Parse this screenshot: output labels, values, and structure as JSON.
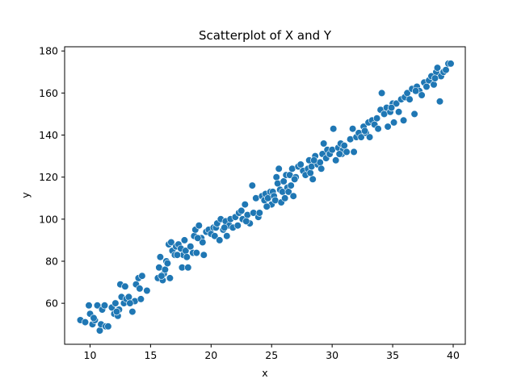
{
  "chart_data": {
    "type": "scatter",
    "title": "Scatterplot of X and Y",
    "xlabel": "x",
    "ylabel": "y",
    "xlim": [
      7.9,
      41.0
    ],
    "ylim": [
      40.5,
      182.0
    ],
    "x_ticks": [
      10,
      15,
      20,
      25,
      30,
      35,
      40
    ],
    "y_ticks": [
      60,
      80,
      100,
      120,
      140,
      160,
      180
    ],
    "grid": false,
    "legend": "none",
    "marker_color": "#1f77b4",
    "marker_edge": "#ffffff",
    "points": [
      [
        9.2,
        52
      ],
      [
        9.6,
        51
      ],
      [
        9.9,
        59
      ],
      [
        10.0,
        55
      ],
      [
        10.2,
        50
      ],
      [
        10.4,
        52
      ],
      [
        10.6,
        59
      ],
      [
        10.8,
        47
      ],
      [
        10.9,
        50
      ],
      [
        11.0,
        57
      ],
      [
        11.2,
        59
      ],
      [
        11.3,
        49
      ],
      [
        11.5,
        49
      ],
      [
        11.8,
        58
      ],
      [
        12.0,
        55
      ],
      [
        12.1,
        60
      ],
      [
        12.3,
        54
      ],
      [
        12.4,
        57
      ],
      [
        12.5,
        69
      ],
      [
        12.6,
        63
      ],
      [
        12.8,
        60
      ],
      [
        12.9,
        68
      ],
      [
        13.0,
        62
      ],
      [
        13.2,
        63
      ],
      [
        13.5,
        56
      ],
      [
        13.7,
        61
      ],
      [
        13.8,
        69
      ],
      [
        14.0,
        72
      ],
      [
        14.1,
        67
      ],
      [
        14.2,
        62
      ],
      [
        14.3,
        73
      ],
      [
        14.7,
        66
      ],
      [
        15.6,
        72
      ],
      [
        15.7,
        77
      ],
      [
        15.8,
        82
      ],
      [
        16.0,
        71
      ],
      [
        16.1,
        74
      ],
      [
        16.2,
        76
      ],
      [
        16.3,
        80
      ],
      [
        16.4,
        79
      ],
      [
        16.5,
        88
      ],
      [
        16.6,
        72
      ],
      [
        16.7,
        89
      ],
      [
        16.8,
        85
      ],
      [
        17.0,
        83
      ],
      [
        17.1,
        87
      ],
      [
        17.3,
        88
      ],
      [
        17.5,
        86
      ],
      [
        17.6,
        77
      ],
      [
        17.7,
        83
      ],
      [
        17.8,
        90
      ],
      [
        17.9,
        85
      ],
      [
        18.0,
        82
      ],
      [
        18.1,
        77
      ],
      [
        18.3,
        87
      ],
      [
        18.5,
        84
      ],
      [
        18.6,
        92
      ],
      [
        18.7,
        95
      ],
      [
        18.8,
        84
      ],
      [
        19.0,
        97
      ],
      [
        19.2,
        91
      ],
      [
        19.3,
        89
      ],
      [
        19.4,
        83
      ],
      [
        19.6,
        94
      ],
      [
        19.8,
        95
      ],
      [
        20.0,
        93
      ],
      [
        20.2,
        96
      ],
      [
        20.3,
        92
      ],
      [
        20.4,
        96
      ],
      [
        20.5,
        98
      ],
      [
        20.7,
        90
      ],
      [
        20.8,
        100
      ],
      [
        21.0,
        95
      ],
      [
        21.2,
        99
      ],
      [
        21.3,
        92
      ],
      [
        21.5,
        97
      ],
      [
        21.6,
        100
      ],
      [
        21.8,
        96
      ],
      [
        22.0,
        101
      ],
      [
        22.2,
        97
      ],
      [
        22.3,
        103
      ],
      [
        22.5,
        104
      ],
      [
        22.6,
        100
      ],
      [
        22.8,
        107
      ],
      [
        23.0,
        102
      ],
      [
        23.2,
        98
      ],
      [
        23.4,
        116
      ],
      [
        23.5,
        103
      ],
      [
        23.7,
        110
      ],
      [
        23.9,
        101
      ],
      [
        24.0,
        103
      ],
      [
        24.2,
        111
      ],
      [
        24.4,
        109
      ],
      [
        24.5,
        112
      ],
      [
        24.7,
        110
      ],
      [
        24.9,
        113
      ],
      [
        25.0,
        107
      ],
      [
        25.1,
        113
      ],
      [
        25.2,
        111
      ],
      [
        25.3,
        109
      ],
      [
        25.4,
        120
      ],
      [
        25.5,
        117
      ],
      [
        25.6,
        124
      ],
      [
        25.7,
        114
      ],
      [
        25.8,
        108
      ],
      [
        25.9,
        113
      ],
      [
        26.0,
        118
      ],
      [
        26.1,
        110
      ],
      [
        26.2,
        121
      ],
      [
        26.3,
        115
      ],
      [
        26.4,
        113
      ],
      [
        26.5,
        121
      ],
      [
        26.6,
        116
      ],
      [
        26.7,
        124
      ],
      [
        26.8,
        111
      ],
      [
        27.0,
        120
      ],
      [
        27.2,
        125
      ],
      [
        27.4,
        126
      ],
      [
        27.6,
        123
      ],
      [
        27.8,
        121
      ],
      [
        28.0,
        124
      ],
      [
        28.1,
        128
      ],
      [
        28.2,
        122
      ],
      [
        28.3,
        125
      ],
      [
        28.4,
        119
      ],
      [
        28.6,
        130
      ],
      [
        28.8,
        126
      ],
      [
        29.0,
        127
      ],
      [
        29.1,
        124
      ],
      [
        29.2,
        131
      ],
      [
        29.3,
        136
      ],
      [
        29.5,
        129
      ],
      [
        29.6,
        133
      ],
      [
        29.8,
        131
      ],
      [
        30.0,
        133
      ],
      [
        30.1,
        143
      ],
      [
        30.3,
        128
      ],
      [
        30.5,
        134
      ],
      [
        30.7,
        136
      ],
      [
        30.8,
        131
      ],
      [
        30.9,
        133
      ],
      [
        31.0,
        135
      ],
      [
        31.2,
        132
      ],
      [
        31.5,
        138
      ],
      [
        31.7,
        143
      ],
      [
        31.8,
        132
      ],
      [
        32.0,
        139
      ],
      [
        32.2,
        141
      ],
      [
        32.4,
        139
      ],
      [
        32.6,
        144
      ],
      [
        32.8,
        141
      ],
      [
        33.0,
        146
      ],
      [
        33.1,
        139
      ],
      [
        33.3,
        147
      ],
      [
        33.5,
        145
      ],
      [
        33.7,
        148
      ],
      [
        33.8,
        143
      ],
      [
        34.0,
        152
      ],
      [
        34.1,
        160
      ],
      [
        34.3,
        150
      ],
      [
        34.5,
        153
      ],
      [
        34.6,
        144
      ],
      [
        34.8,
        151
      ],
      [
        35.0,
        155
      ],
      [
        35.1,
        146
      ],
      [
        35.3,
        155
      ],
      [
        35.5,
        151
      ],
      [
        35.7,
        157
      ],
      [
        35.9,
        147
      ],
      [
        36.0,
        158
      ],
      [
        36.2,
        160
      ],
      [
        36.4,
        157
      ],
      [
        36.6,
        162
      ],
      [
        36.8,
        150
      ],
      [
        37.0,
        163
      ],
      [
        37.2,
        161
      ],
      [
        37.4,
        159
      ],
      [
        37.6,
        165
      ],
      [
        37.8,
        163
      ],
      [
        38.0,
        166
      ],
      [
        38.2,
        168
      ],
      [
        38.4,
        164
      ],
      [
        38.6,
        170
      ],
      [
        38.7,
        172
      ],
      [
        38.9,
        156
      ],
      [
        39.0,
        168
      ],
      [
        39.2,
        170
      ],
      [
        39.4,
        171
      ],
      [
        39.6,
        174
      ],
      [
        39.8,
        174
      ],
      [
        10.3,
        53
      ],
      [
        12.2,
        56
      ],
      [
        13.3,
        60
      ],
      [
        15.9,
        73
      ],
      [
        17.2,
        83
      ],
      [
        18.9,
        91
      ],
      [
        21.1,
        96
      ],
      [
        22.9,
        99
      ],
      [
        24.6,
        106
      ],
      [
        26.9,
        119
      ],
      [
        28.5,
        128
      ],
      [
        30.6,
        131
      ],
      [
        32.7,
        142
      ],
      [
        34.9,
        153
      ],
      [
        36.9,
        161
      ],
      [
        38.5,
        167
      ]
    ]
  }
}
